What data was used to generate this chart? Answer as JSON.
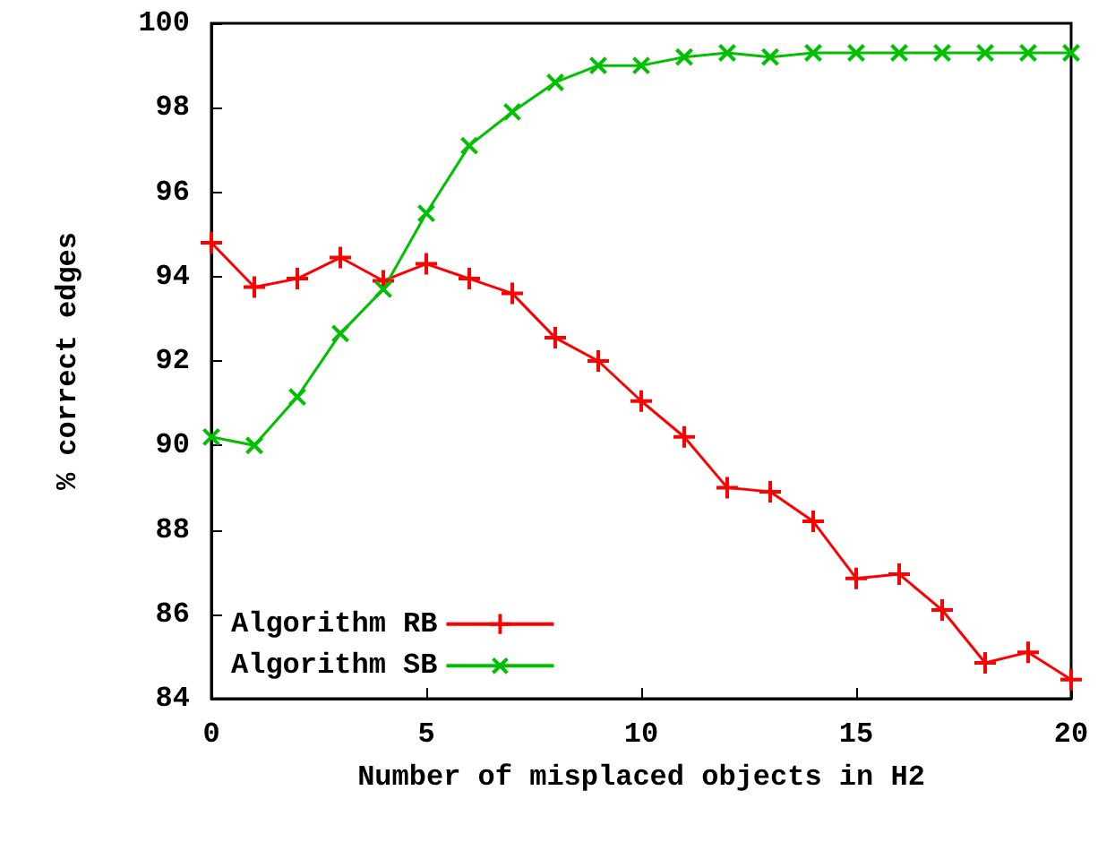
{
  "chart_data": {
    "type": "line",
    "xlabel": "Number of misplaced objects in H2",
    "ylabel": "% correct edges",
    "x": [
      0,
      1,
      2,
      3,
      4,
      5,
      6,
      7,
      8,
      9,
      10,
      11,
      12,
      13,
      14,
      15,
      16,
      17,
      18,
      19,
      20
    ],
    "series": [
      {
        "name": "Algorithm RB",
        "color": "#ff0000",
        "marker": "cross",
        "values": [
          94.8,
          93.75,
          93.95,
          94.45,
          93.9,
          94.3,
          93.95,
          93.6,
          92.55,
          92.0,
          91.05,
          90.2,
          89.0,
          88.9,
          88.2,
          86.85,
          86.95,
          86.1,
          84.85,
          85.1,
          84.45
        ]
      },
      {
        "name": "Algorithm SB",
        "color": "#00c000",
        "marker": "cross",
        "values": [
          90.2,
          90.0,
          91.15,
          92.65,
          93.7,
          95.5,
          97.1,
          97.9,
          98.6,
          99.0,
          99.0,
          99.2,
          99.3,
          99.2,
          99.3,
          99.3,
          99.3,
          99.3,
          99.3,
          99.3,
          99.3
        ]
      }
    ],
    "xlim": [
      0,
      20
    ],
    "xticks": [
      0,
      5,
      10,
      15,
      20
    ],
    "ylim": [
      84,
      100
    ],
    "yticks": [
      84,
      86,
      88,
      90,
      92,
      94,
      96,
      98,
      100
    ],
    "grid": false,
    "legend": "bottom left",
    "line_style": "solid"
  }
}
